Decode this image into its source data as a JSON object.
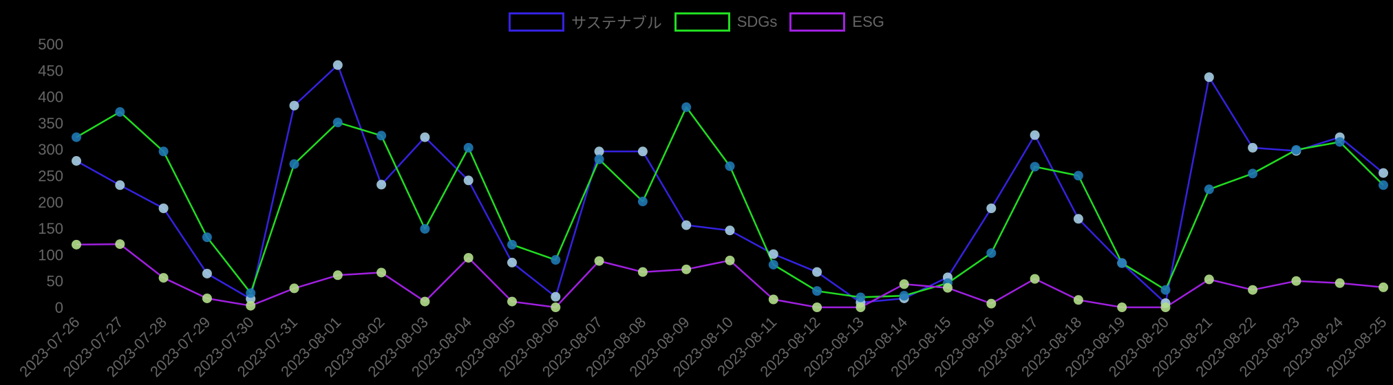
{
  "chart_data": {
    "type": "line",
    "title": "",
    "xlabel": "",
    "ylabel": "",
    "ylim": [
      0,
      500
    ],
    "yticks": [
      0,
      50,
      100,
      150,
      200,
      250,
      300,
      350,
      400,
      450,
      500
    ],
    "grid": false,
    "legend_position": "top",
    "categories": [
      "2023-07-26",
      "2023-07-27",
      "2023-07-28",
      "2023-07-29",
      "2023-07-30",
      "2023-07-31",
      "2023-08-01",
      "2023-08-02",
      "2023-08-03",
      "2023-08-04",
      "2023-08-05",
      "2023-08-06",
      "2023-08-07",
      "2023-08-08",
      "2023-08-09",
      "2023-08-10",
      "2023-08-11",
      "2023-08-12",
      "2023-08-13",
      "2023-08-14",
      "2023-08-15",
      "2023-08-16",
      "2023-08-17",
      "2023-08-18",
      "2023-08-19",
      "2023-08-20",
      "2023-08-21",
      "2023-08-22",
      "2023-08-23",
      "2023-08-24",
      "2023-08-25"
    ],
    "series": [
      {
        "name": "サステナブル",
        "color": "#3422e0",
        "point_color": "#a6cee3",
        "values": [
          278,
          232,
          188,
          64,
          16,
          383,
          460,
          233,
          323,
          241,
          85,
          20,
          296,
          296,
          156,
          146,
          101,
          67,
          9,
          17,
          57,
          188,
          327,
          168,
          84,
          8,
          437,
          303,
          297,
          323,
          255
        ]
      },
      {
        "name": "SDGs",
        "color": "#22dd22",
        "point_color": "#1f78b4",
        "values": [
          323,
          371,
          296,
          133,
          27,
          272,
          351,
          326,
          149,
          303,
          119,
          90,
          281,
          201,
          380,
          268,
          81,
          31,
          19,
          22,
          46,
          103,
          267,
          250,
          84,
          33,
          224,
          254,
          299,
          314,
          232
        ]
      },
      {
        "name": "ESG",
        "color": "#a020e0",
        "point_color": "#b2df8a",
        "values": [
          119,
          120,
          56,
          17,
          3,
          36,
          61,
          66,
          11,
          94,
          11,
          0,
          88,
          67,
          72,
          89,
          15,
          0,
          0,
          44,
          37,
          7,
          54,
          14,
          0,
          0,
          53,
          33,
          50,
          46,
          38
        ]
      }
    ]
  },
  "legend": {
    "items": [
      {
        "label": "サステナブル",
        "color": "#3422e0"
      },
      {
        "label": "SDGs",
        "color": "#22dd22"
      },
      {
        "label": "ESG",
        "color": "#a020e0"
      }
    ]
  }
}
